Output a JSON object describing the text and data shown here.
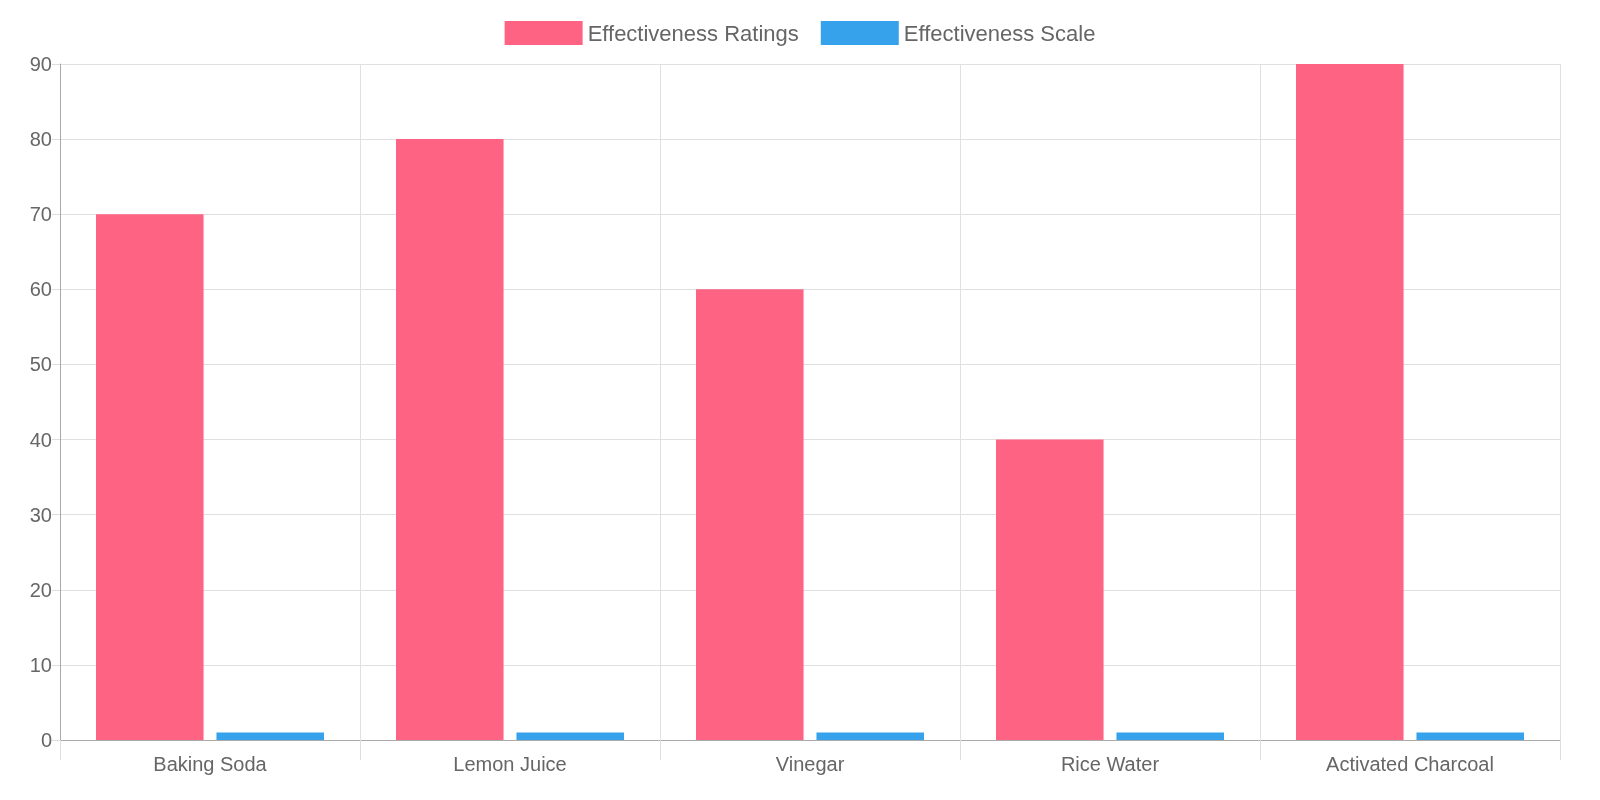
{
  "chart_data": {
    "type": "bar",
    "categories": [
      "Baking Soda",
      "Lemon Juice",
      "Vinegar",
      "Rice Water",
      "Activated Charcoal"
    ],
    "series": [
      {
        "name": "Effectiveness Ratings",
        "color": "#ff6384",
        "values": [
          70,
          80,
          60,
          40,
          90
        ]
      },
      {
        "name": "Effectiveness Scale",
        "color": "#36a2eb",
        "values": [
          1,
          1,
          1,
          1,
          1
        ]
      }
    ],
    "ylim": [
      0,
      90
    ],
    "yticks": [
      0,
      10,
      20,
      30,
      40,
      50,
      60,
      70,
      80,
      90
    ],
    "grid": true,
    "legend": "top"
  }
}
